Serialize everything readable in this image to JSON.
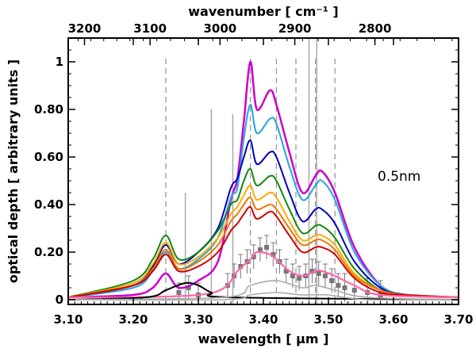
{
  "chart_data": {
    "type": "line",
    "xlabel": "wavelength [ μm ]",
    "x2label": "wavenumber [ cm⁻¹ ]",
    "ylabel": "optical depth [ arbitrary units ]",
    "annotation": "0.5nm",
    "xlim": [
      3.1,
      3.7
    ],
    "ylim": [
      -0.02,
      1.1
    ],
    "x_ticks": [
      "3.10",
      "3.20",
      "3.30",
      "3.40",
      "3.50",
      "3.60",
      "3.70"
    ],
    "x_tick_values": [
      3.1,
      3.2,
      3.3,
      3.4,
      3.5,
      3.6,
      3.7
    ],
    "y_ticks": [
      "0",
      "0.20",
      "0.40",
      "0.60",
      "0.80",
      "1"
    ],
    "y_tick_values": [
      0,
      0.2,
      0.4,
      0.6,
      0.8,
      1.0
    ],
    "x2_ticks": [
      "3200",
      "3100",
      "3000",
      "2900",
      "2800"
    ],
    "x2_tick_values": [
      3200,
      3100,
      3000,
      2900,
      2800
    ],
    "vlines_dashed": [
      3.25,
      3.38,
      3.42,
      3.45,
      3.48,
      3.51
    ],
    "vlines_solid": [
      {
        "x": 3.28,
        "top": 0.45
      },
      {
        "x": 3.32,
        "top": 0.8
      },
      {
        "x": 3.353,
        "top": 0.78
      },
      {
        "x": 3.47,
        "top": 1.1
      },
      {
        "x": 3.482,
        "top": 1.1
      }
    ],
    "colors": [
      "#cc00cc",
      "#33aadd",
      "#0000bb",
      "#118811",
      "#ffaa00",
      "#ee7700",
      "#cc0000",
      "#ff66aa",
      "#000000",
      "#aaaaaa"
    ],
    "series": [
      {
        "values": [
          [
            3.1,
            0.01
          ],
          [
            3.2,
            0.02
          ],
          [
            3.23,
            0.05
          ],
          [
            3.25,
            0.11
          ],
          [
            3.27,
            0.05
          ],
          [
            3.3,
            0.08
          ],
          [
            3.33,
            0.16
          ],
          [
            3.35,
            0.42
          ],
          [
            3.36,
            0.51
          ],
          [
            3.37,
            0.75
          ],
          [
            3.38,
            1.0
          ],
          [
            3.39,
            0.8
          ],
          [
            3.41,
            0.88
          ],
          [
            3.42,
            0.82
          ],
          [
            3.44,
            0.62
          ],
          [
            3.46,
            0.45
          ],
          [
            3.48,
            0.52
          ],
          [
            3.49,
            0.54
          ],
          [
            3.51,
            0.45
          ],
          [
            3.54,
            0.22
          ],
          [
            3.58,
            0.06
          ],
          [
            3.62,
            0.02
          ],
          [
            3.7,
            0.01
          ]
        ]
      },
      {
        "values": [
          [
            3.1,
            0.01
          ],
          [
            3.2,
            0.05
          ],
          [
            3.23,
            0.12
          ],
          [
            3.25,
            0.2
          ],
          [
            3.27,
            0.13
          ],
          [
            3.3,
            0.17
          ],
          [
            3.33,
            0.26
          ],
          [
            3.35,
            0.43
          ],
          [
            3.36,
            0.47
          ],
          [
            3.37,
            0.68
          ],
          [
            3.38,
            0.82
          ],
          [
            3.39,
            0.7
          ],
          [
            3.41,
            0.76
          ],
          [
            3.42,
            0.74
          ],
          [
            3.44,
            0.56
          ],
          [
            3.46,
            0.42
          ],
          [
            3.48,
            0.48
          ],
          [
            3.49,
            0.5
          ],
          [
            3.51,
            0.42
          ],
          [
            3.54,
            0.2
          ],
          [
            3.58,
            0.06
          ],
          [
            3.62,
            0.02
          ],
          [
            3.7,
            0.01
          ]
        ]
      },
      {
        "values": [
          [
            3.1,
            0.01
          ],
          [
            3.2,
            0.06
          ],
          [
            3.23,
            0.14
          ],
          [
            3.25,
            0.23
          ],
          [
            3.27,
            0.15
          ],
          [
            3.3,
            0.2
          ],
          [
            3.33,
            0.3
          ],
          [
            3.35,
            0.47
          ],
          [
            3.36,
            0.51
          ],
          [
            3.37,
            0.6
          ],
          [
            3.38,
            0.67
          ],
          [
            3.39,
            0.57
          ],
          [
            3.41,
            0.62
          ],
          [
            3.42,
            0.6
          ],
          [
            3.44,
            0.45
          ],
          [
            3.46,
            0.33
          ],
          [
            3.48,
            0.38
          ],
          [
            3.49,
            0.38
          ],
          [
            3.51,
            0.32
          ],
          [
            3.54,
            0.16
          ],
          [
            3.58,
            0.05
          ],
          [
            3.62,
            0.02
          ],
          [
            3.7,
            0.01
          ]
        ]
      },
      {
        "values": [
          [
            3.1,
            0.01
          ],
          [
            3.2,
            0.08
          ],
          [
            3.23,
            0.17
          ],
          [
            3.25,
            0.27
          ],
          [
            3.27,
            0.17
          ],
          [
            3.3,
            0.2
          ],
          [
            3.33,
            0.29
          ],
          [
            3.35,
            0.4
          ],
          [
            3.36,
            0.42
          ],
          [
            3.37,
            0.5
          ],
          [
            3.38,
            0.55
          ],
          [
            3.39,
            0.48
          ],
          [
            3.41,
            0.52
          ],
          [
            3.42,
            0.5
          ],
          [
            3.44,
            0.38
          ],
          [
            3.46,
            0.28
          ],
          [
            3.48,
            0.31
          ],
          [
            3.49,
            0.31
          ],
          [
            3.51,
            0.26
          ],
          [
            3.54,
            0.13
          ],
          [
            3.58,
            0.04
          ],
          [
            3.62,
            0.02
          ],
          [
            3.7,
            0.01
          ]
        ]
      },
      {
        "values": [
          [
            3.1,
            0.01
          ],
          [
            3.2,
            0.07
          ],
          [
            3.23,
            0.15
          ],
          [
            3.25,
            0.24
          ],
          [
            3.27,
            0.15
          ],
          [
            3.3,
            0.18
          ],
          [
            3.33,
            0.26
          ],
          [
            3.35,
            0.36
          ],
          [
            3.36,
            0.39
          ],
          [
            3.37,
            0.44
          ],
          [
            3.38,
            0.48
          ],
          [
            3.39,
            0.42
          ],
          [
            3.41,
            0.45
          ],
          [
            3.42,
            0.43
          ],
          [
            3.44,
            0.33
          ],
          [
            3.46,
            0.25
          ],
          [
            3.48,
            0.27
          ],
          [
            3.49,
            0.27
          ],
          [
            3.51,
            0.23
          ],
          [
            3.54,
            0.11
          ],
          [
            3.58,
            0.04
          ],
          [
            3.62,
            0.02
          ],
          [
            3.7,
            0.01
          ]
        ]
      },
      {
        "values": [
          [
            3.1,
            0.01
          ],
          [
            3.2,
            0.06
          ],
          [
            3.23,
            0.13
          ],
          [
            3.25,
            0.21
          ],
          [
            3.27,
            0.13
          ],
          [
            3.3,
            0.16
          ],
          [
            3.33,
            0.23
          ],
          [
            3.35,
            0.33
          ],
          [
            3.36,
            0.36
          ],
          [
            3.37,
            0.4
          ],
          [
            3.38,
            0.43
          ],
          [
            3.39,
            0.38
          ],
          [
            3.41,
            0.4
          ],
          [
            3.42,
            0.38
          ],
          [
            3.44,
            0.3
          ],
          [
            3.46,
            0.23
          ],
          [
            3.48,
            0.25
          ],
          [
            3.49,
            0.25
          ],
          [
            3.51,
            0.21
          ],
          [
            3.54,
            0.1
          ],
          [
            3.58,
            0.04
          ],
          [
            3.62,
            0.02
          ],
          [
            3.7,
            0.01
          ]
        ]
      },
      {
        "values": [
          [
            3.1,
            0.01
          ],
          [
            3.2,
            0.06
          ],
          [
            3.23,
            0.12
          ],
          [
            3.25,
            0.19
          ],
          [
            3.27,
            0.12
          ],
          [
            3.3,
            0.14
          ],
          [
            3.33,
            0.2
          ],
          [
            3.35,
            0.29
          ],
          [
            3.36,
            0.32
          ],
          [
            3.37,
            0.36
          ],
          [
            3.38,
            0.39
          ],
          [
            3.39,
            0.34
          ],
          [
            3.41,
            0.37
          ],
          [
            3.42,
            0.35
          ],
          [
            3.44,
            0.27
          ],
          [
            3.46,
            0.2
          ],
          [
            3.48,
            0.22
          ],
          [
            3.49,
            0.22
          ],
          [
            3.51,
            0.19
          ],
          [
            3.54,
            0.09
          ],
          [
            3.58,
            0.03
          ],
          [
            3.62,
            0.02
          ],
          [
            3.7,
            0.01
          ]
        ]
      },
      {
        "values": [
          [
            3.1,
            0.01
          ],
          [
            3.2,
            0.01
          ],
          [
            3.3,
            0.02
          ],
          [
            3.34,
            0.05
          ],
          [
            3.36,
            0.12
          ],
          [
            3.38,
            0.17
          ],
          [
            3.39,
            0.2
          ],
          [
            3.41,
            0.19
          ],
          [
            3.42,
            0.17
          ],
          [
            3.44,
            0.12
          ],
          [
            3.46,
            0.1
          ],
          [
            3.48,
            0.12
          ],
          [
            3.49,
            0.12
          ],
          [
            3.51,
            0.1
          ],
          [
            3.54,
            0.06
          ],
          [
            3.58,
            0.02
          ],
          [
            3.7,
            0.01
          ]
        ]
      },
      {
        "values": [
          [
            3.1,
            0.0
          ],
          [
            3.22,
            0.01
          ],
          [
            3.25,
            0.04
          ],
          [
            3.28,
            0.07
          ],
          [
            3.3,
            0.06
          ],
          [
            3.32,
            0.03
          ],
          [
            3.35,
            0.01
          ],
          [
            3.7,
            0.0
          ]
        ]
      },
      {
        "values": [
          [
            3.1,
            0.0
          ],
          [
            3.34,
            0.01
          ],
          [
            3.38,
            0.06
          ],
          [
            3.42,
            0.08
          ],
          [
            3.46,
            0.05
          ],
          [
            3.48,
            0.06
          ],
          [
            3.51,
            0.04
          ],
          [
            3.56,
            0.01
          ],
          [
            3.7,
            0.0
          ]
        ]
      },
      {
        "values": [
          [
            3.1,
            0.0
          ],
          [
            3.34,
            0.0
          ],
          [
            3.38,
            0.02
          ],
          [
            3.42,
            0.03
          ],
          [
            3.46,
            0.02
          ],
          [
            3.5,
            0.02
          ],
          [
            3.56,
            0.0
          ],
          [
            3.7,
            0.0
          ]
        ]
      }
    ],
    "observations": [
      {
        "x": 3.27,
        "y": 0.03,
        "err": 0.04
      },
      {
        "x": 3.285,
        "y": 0.05,
        "err": 0.05
      },
      {
        "x": 3.3,
        "y": 0.02,
        "err": 0.05
      },
      {
        "x": 3.345,
        "y": 0.06,
        "err": 0.05
      },
      {
        "x": 3.355,
        "y": 0.1,
        "err": 0.05
      },
      {
        "x": 3.365,
        "y": 0.14,
        "err": 0.05
      },
      {
        "x": 3.375,
        "y": 0.16,
        "err": 0.05
      },
      {
        "x": 3.385,
        "y": 0.18,
        "err": 0.05
      },
      {
        "x": 3.395,
        "y": 0.21,
        "err": 0.05
      },
      {
        "x": 3.405,
        "y": 0.22,
        "err": 0.05
      },
      {
        "x": 3.415,
        "y": 0.19,
        "err": 0.05
      },
      {
        "x": 3.425,
        "y": 0.16,
        "err": 0.05
      },
      {
        "x": 3.435,
        "y": 0.12,
        "err": 0.05
      },
      {
        "x": 3.445,
        "y": 0.1,
        "err": 0.05
      },
      {
        "x": 3.455,
        "y": 0.09,
        "err": 0.05
      },
      {
        "x": 3.465,
        "y": 0.1,
        "err": 0.05
      },
      {
        "x": 3.475,
        "y": 0.12,
        "err": 0.05
      },
      {
        "x": 3.485,
        "y": 0.11,
        "err": 0.05
      },
      {
        "x": 3.495,
        "y": 0.1,
        "err": 0.05
      },
      {
        "x": 3.505,
        "y": 0.08,
        "err": 0.05
      },
      {
        "x": 3.515,
        "y": 0.06,
        "err": 0.05
      },
      {
        "x": 3.525,
        "y": 0.05,
        "err": 0.06
      },
      {
        "x": 3.54,
        "y": 0.04,
        "err": 0.06
      },
      {
        "x": 3.56,
        "y": 0.03,
        "err": 0.06
      },
      {
        "x": 3.58,
        "y": 0.02,
        "err": 0.06
      }
    ]
  }
}
